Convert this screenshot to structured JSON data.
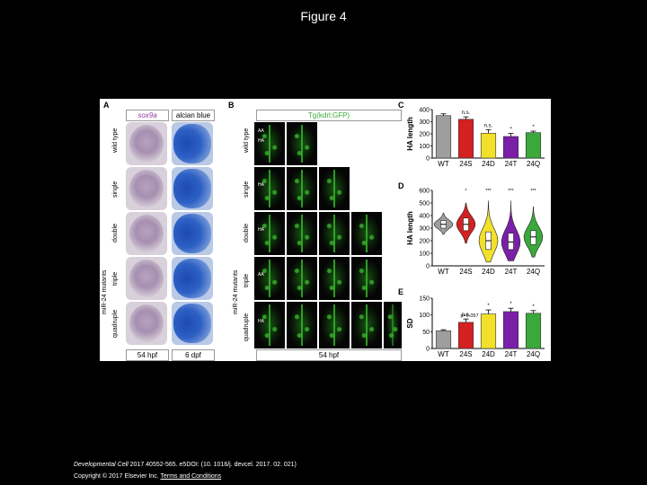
{
  "title": "Figure 4",
  "panels": {
    "a": "A",
    "b": "B",
    "c": "C",
    "d": "D",
    "e": "E"
  },
  "headers": {
    "sox9a": "sox9a",
    "alcian": "alcian blue",
    "tg": "Tg(kdrl:GFP)",
    "hpf_a": "54 hpf",
    "dpf": "6 dpf",
    "hpf_b": "54 hpf"
  },
  "row_labels": [
    "wild type",
    "single",
    "double",
    "triple",
    "quadruple"
  ],
  "group_label": "miR-24 mutants",
  "vessel_labels": {
    "aa": "AA",
    "ha": "HA"
  },
  "chart_c": {
    "type": "bar",
    "ylabel": "HA length",
    "categories": [
      "WT",
      "24S",
      "24D",
      "24T",
      "24Q"
    ],
    "values": [
      350,
      320,
      205,
      178,
      210
    ],
    "errors": [
      15,
      20,
      30,
      25,
      12
    ],
    "colors": [
      "#9e9e9e",
      "#d42020",
      "#f2e02a",
      "#7a20a8",
      "#3aa83a"
    ],
    "annotations": [
      "",
      "n.s.",
      "n.s.",
      "*",
      "*"
    ],
    "ylim": [
      0,
      400
    ],
    "yticks": [
      0,
      100,
      200,
      300,
      400
    ]
  },
  "chart_d": {
    "type": "violin",
    "ylabel": "HA length",
    "categories": [
      "WT",
      "24S",
      "24D",
      "24T",
      "24Q"
    ],
    "medians": [
      330,
      330,
      200,
      190,
      230
    ],
    "q1": [
      300,
      280,
      130,
      130,
      170
    ],
    "q3": [
      360,
      380,
      270,
      260,
      280
    ],
    "min": [
      250,
      180,
      30,
      40,
      70
    ],
    "max": [
      420,
      500,
      520,
      520,
      470
    ],
    "colors": [
      "#9e9e9e",
      "#d42020",
      "#f2e02a",
      "#7a20a8",
      "#3aa83a"
    ],
    "annotations": [
      "",
      "*",
      "***",
      "***",
      "***"
    ],
    "ylim": [
      0,
      600
    ],
    "yticks": [
      0,
      100,
      200,
      300,
      400,
      500,
      600
    ]
  },
  "chart_e": {
    "type": "bar",
    "ylabel": "SD",
    "categories": [
      "WT",
      "24S",
      "24D",
      "24T",
      "24Q"
    ],
    "values": [
      53,
      78,
      103,
      110,
      105
    ],
    "errors": [
      3,
      10,
      12,
      10,
      8
    ],
    "colors": [
      "#9e9e9e",
      "#d42020",
      "#f2e02a",
      "#7a20a8",
      "#3aa83a"
    ],
    "annotations": [
      "",
      "n.s.",
      "*",
      "*",
      "*"
    ],
    "pvalue": "p=0.057",
    "ylim": [
      0,
      150
    ],
    "yticks": [
      0,
      50,
      100,
      150
    ]
  },
  "caption": {
    "journal": "Developmental Cell",
    "line1_rest": " 2017 40552-565. e5DOI: (10. 1016/j. devcel. 2017. 02. 021)",
    "line2_prefix": "Copyright © 2017 Elsevier Inc.",
    "terms": "Terms and Conditions"
  }
}
